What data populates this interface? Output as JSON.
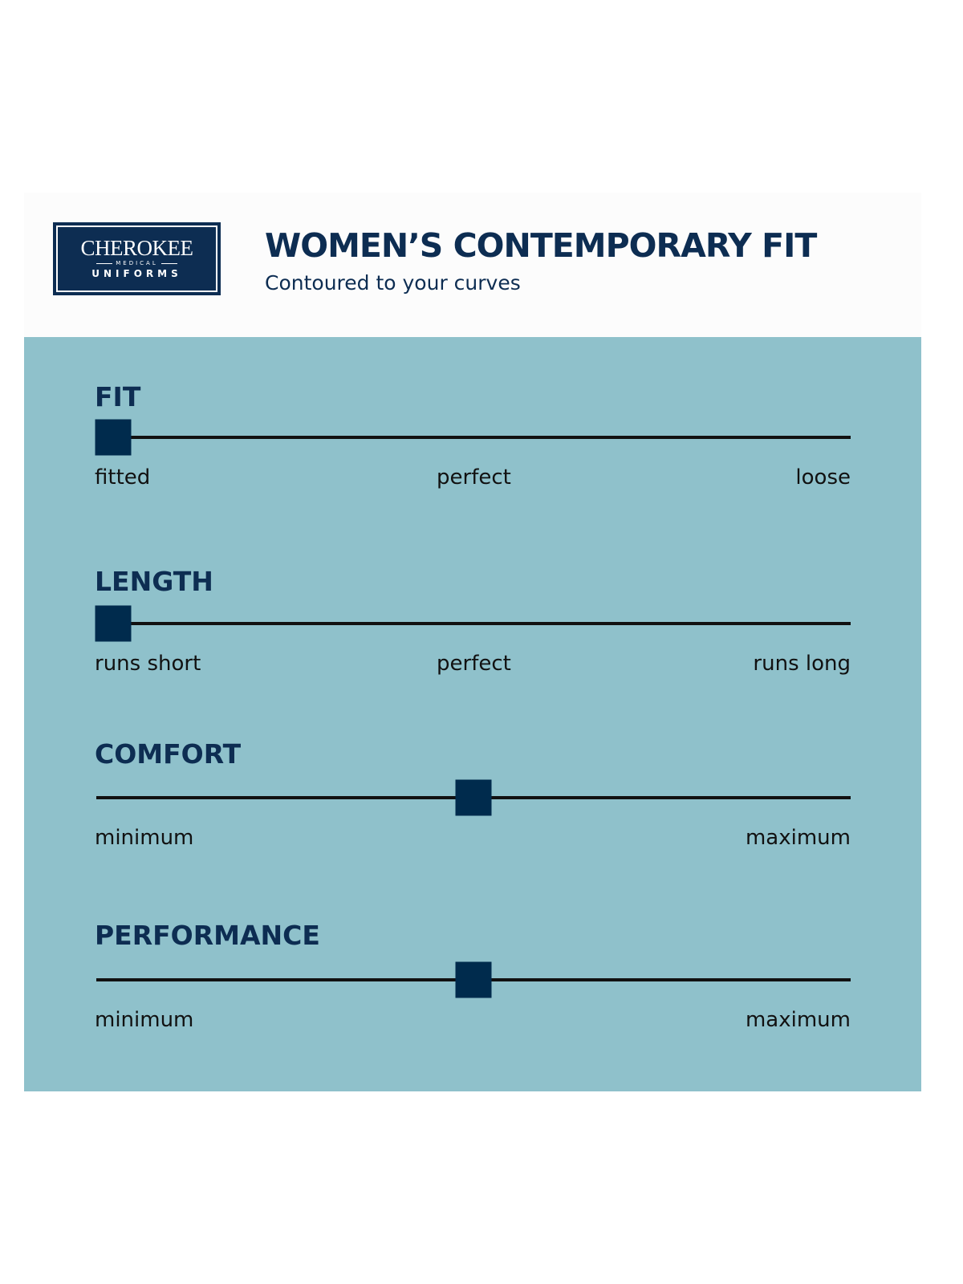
{
  "logo": {
    "brand": "CHEROKEE",
    "sub": "MEDICAL",
    "line2": "UNIFORMS"
  },
  "header": {
    "title": "WOMEN’S CONTEMPORARY FIT",
    "subtitle": "Contoured to your curves"
  },
  "colors": {
    "panel": "#8fc1cb",
    "navy": "#002b4d",
    "track": "#111111"
  },
  "metrics": [
    {
      "label": "FIT",
      "value": 0,
      "ends": [
        "fitted",
        "perfect",
        "loose"
      ]
    },
    {
      "label": "LENGTH",
      "value": 0,
      "ends": [
        "runs short",
        "perfect",
        "runs long"
      ]
    },
    {
      "label": "COMFORT",
      "value": 0.5,
      "ends": [
        "minimum",
        "maximum"
      ]
    },
    {
      "label": "PERFORMANCE",
      "value": 0.5,
      "ends": [
        "minimum",
        "maximum"
      ]
    }
  ]
}
